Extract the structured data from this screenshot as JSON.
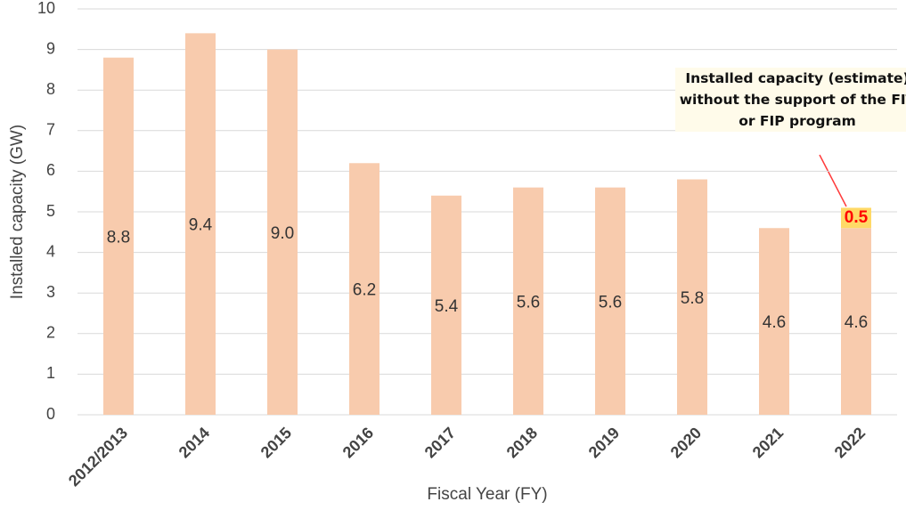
{
  "chart_data": {
    "type": "stacked-bar",
    "x_label": "Fiscal Year (FY)",
    "y_label": "Installed capacity (GW)",
    "categories": [
      "2012/2013",
      "2014",
      "2015",
      "2016",
      "2017",
      "2018",
      "2019",
      "2020",
      "2021",
      "2022"
    ],
    "series": [
      {
        "color": "#f8cbad",
        "label_color": "#333333",
        "values": [
          8.8,
          9.4,
          9.0,
          6.2,
          5.4,
          5.6,
          5.6,
          5.8,
          4.6,
          4.6
        ],
        "value_labels": [
          "8.8",
          "9.4",
          "9.0",
          "6.2",
          "5.4",
          "5.6",
          "5.6",
          "5.8",
          "4.6",
          "4.6"
        ]
      },
      {
        "color": "#ffd966",
        "label_color": "#ff0000",
        "values": [
          null,
          null,
          null,
          null,
          null,
          null,
          null,
          null,
          null,
          0.5
        ],
        "value_labels": [
          null,
          null,
          null,
          null,
          null,
          null,
          null,
          null,
          null,
          "0.5"
        ]
      }
    ],
    "annotation": "Installed capacity (estimate) without the support of the FIT or FIP program",
    "ylim": [
      0,
      10
    ],
    "yticks": [
      0,
      1,
      2,
      3,
      4,
      5,
      6,
      7,
      8,
      9,
      10
    ],
    "grid": true
  }
}
